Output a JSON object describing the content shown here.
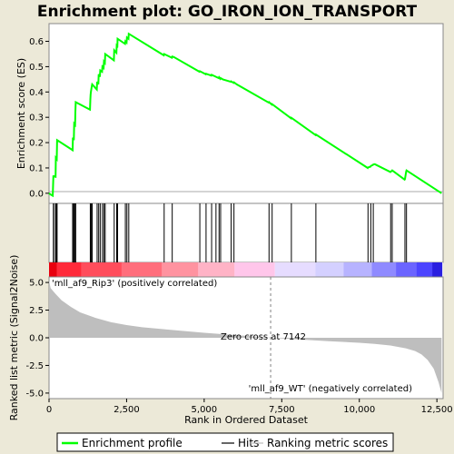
{
  "page_title": "Enrichment plot: GO_IRON_ION_TRANSPORT",
  "colors": {
    "profile": "#00ff00",
    "hits": "#000000",
    "metric_fill": "#bebebe",
    "zero_line": "#808080",
    "positive_label": "#ff0000",
    "negative_label": "#0000ff",
    "background": "#ece9d8"
  },
  "chart_data": [
    {
      "id": "enrichment-panel",
      "type": "line",
      "ylabel": "Enrichment score (ES)",
      "xlim": [
        0,
        12700
      ],
      "ylim": [
        -0.04,
        0.67
      ],
      "yticks": [
        0.0,
        0.1,
        0.2,
        0.3,
        0.4,
        0.5,
        0.6
      ],
      "ytick_labels": [
        "0.0",
        "0.1",
        "0.2",
        "0.3",
        "0.4",
        "0.5",
        "0.6"
      ],
      "series": [
        {
          "name": "Enrichment profile",
          "x": [
            0,
            50,
            120,
            140,
            150,
            210,
            220,
            250,
            260,
            700,
            760,
            770,
            800,
            810,
            840,
            850,
            860,
            1320,
            1330,
            1340,
            1350,
            1380,
            1390,
            1540,
            1550,
            1590,
            1600,
            1640,
            1650,
            1710,
            1720,
            1760,
            1770,
            1800,
            1810,
            2090,
            2100,
            2170,
            2180,
            2200,
            2210,
            2450,
            2460,
            2500,
            2510,
            2560,
            2570,
            3700,
            3710,
            3960,
            3970,
            4020,
            4850,
            4860,
            5050,
            5060,
            5230,
            5240,
            5380,
            5470,
            5480,
            5520,
            5530,
            5600,
            5860,
            5870,
            5950,
            5960,
            6050,
            7080,
            7090,
            7180,
            7190,
            7800,
            7810,
            8590,
            8600,
            10270,
            10280,
            10360,
            10370,
            10440,
            10450,
            10500,
            11000,
            11010,
            11050,
            11060,
            11460,
            11470,
            11510,
            11520,
            12650
          ],
          "values": [
            0.0,
            -0.005,
            -0.01,
            0.07,
            0.068,
            0.065,
            0.14,
            0.135,
            0.21,
            0.175,
            0.17,
            0.22,
            0.21,
            0.275,
            0.27,
            0.32,
            0.36,
            0.33,
            0.37,
            0.39,
            0.4,
            0.425,
            0.43,
            0.41,
            0.44,
            0.43,
            0.47,
            0.46,
            0.485,
            0.48,
            0.5,
            0.495,
            0.52,
            0.515,
            0.55,
            0.525,
            0.565,
            0.555,
            0.58,
            0.575,
            0.61,
            0.59,
            0.6,
            0.595,
            0.615,
            0.61,
            0.63,
            0.545,
            0.55,
            0.535,
            0.54,
            0.538,
            0.48,
            0.482,
            0.47,
            0.472,
            0.465,
            0.468,
            0.46,
            0.455,
            0.458,
            0.452,
            0.455,
            0.45,
            0.44,
            0.442,
            0.436,
            0.438,
            0.43,
            0.358,
            0.36,
            0.35,
            0.352,
            0.296,
            0.298,
            0.23,
            0.232,
            0.1,
            0.102,
            0.105,
            0.108,
            0.112,
            0.114,
            0.115,
            0.084,
            0.086,
            0.088,
            0.09,
            0.054,
            0.056,
            0.085,
            0.09,
            0.0
          ]
        }
      ]
    },
    {
      "id": "hits-panel",
      "type": "scatter",
      "xlim": [
        0,
        12700
      ],
      "series": [
        {
          "name": "Hits",
          "x": [
            140,
            150,
            210,
            220,
            250,
            260,
            760,
            770,
            800,
            810,
            840,
            850,
            860,
            1330,
            1340,
            1350,
            1380,
            1390,
            1550,
            1600,
            1650,
            1720,
            1770,
            1810,
            2100,
            2180,
            2210,
            2460,
            2510,
            2570,
            3710,
            3970,
            4860,
            5060,
            5240,
            5380,
            5480,
            5530,
            5870,
            5960,
            7090,
            7190,
            7810,
            8600,
            10280,
            10370,
            10450,
            11010,
            11060,
            11470,
            11520
          ]
        }
      ]
    },
    {
      "id": "ranked-metric-panel",
      "type": "area",
      "xlabel": "Rank in Ordered Dataset",
      "ylabel": "Ranked list metric (Signal2Noise)",
      "xlim": [
        0,
        12700
      ],
      "ylim": [
        -5.5,
        5.5
      ],
      "yticks": [
        -5.0,
        -2.5,
        0.0,
        2.5,
        5.0
      ],
      "ytick_labels": [
        "-5.0",
        "-2.5",
        "0.0",
        "2.5",
        "5.0"
      ],
      "xticks": [
        0,
        2500,
        5000,
        7500,
        10000,
        12500
      ],
      "xtick_labels": [
        "0",
        "2,500",
        "5,000",
        "7,500",
        "10,000",
        "12,500"
      ],
      "zero_cross": 7142,
      "series": [
        {
          "name": "Ranking metric scores",
          "x": [
            0,
            50,
            200,
            400,
            700,
            1000,
            1500,
            2000,
            2500,
            3000,
            4000,
            5000,
            6000,
            7142,
            8000,
            9000,
            10000,
            10500,
            11000,
            11500,
            11800,
            12000,
            12200,
            12400,
            12550,
            12650
          ],
          "values": [
            5.2,
            4.5,
            4.0,
            3.4,
            2.8,
            2.3,
            1.8,
            1.4,
            1.15,
            0.95,
            0.7,
            0.45,
            0.25,
            0.0,
            -0.15,
            -0.3,
            -0.45,
            -0.55,
            -0.7,
            -0.95,
            -1.2,
            -1.5,
            -2.0,
            -2.8,
            -4.0,
            -5.0
          ]
        }
      ]
    }
  ],
  "annotations": {
    "positive_label": "'mll_af9_Rip3' (positively correlated)",
    "negative_label": "'mll_af9_WT' (negatively correlated)",
    "zero_cross_label": "Zero cross at 7142"
  },
  "legend": {
    "items": [
      {
        "label": "Enrichment profile",
        "marker": "line",
        "color": "#00ff00"
      },
      {
        "label": "Hits",
        "marker": "line",
        "color": "#000000"
      },
      {
        "label": "Ranking metric scores",
        "marker": "line",
        "color": "#bebebe"
      }
    ]
  }
}
